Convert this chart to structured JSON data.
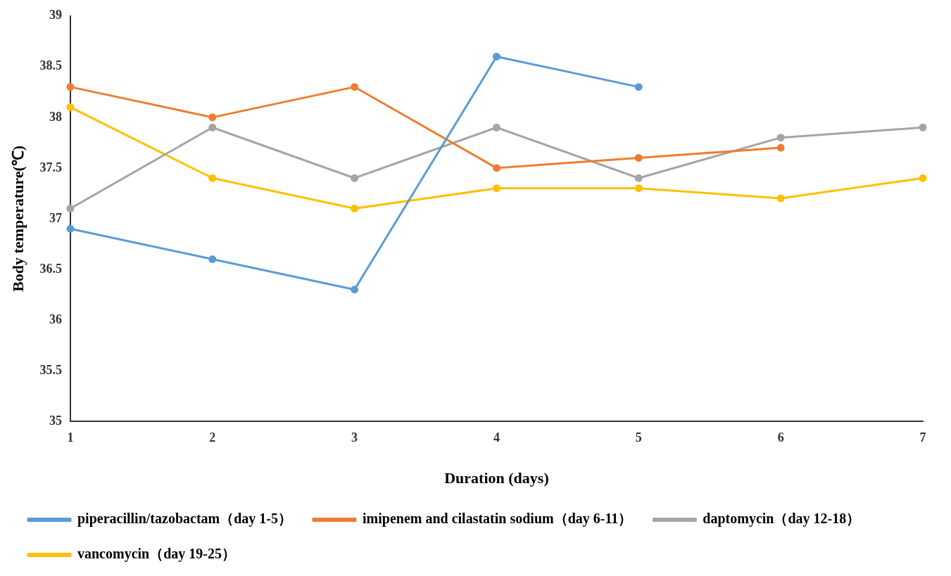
{
  "chart_data": {
    "type": "line",
    "xlabel": "Duration (days)",
    "ylabel": "Body temperature(℃)",
    "categories": [
      "1",
      "2",
      "3",
      "4",
      "5",
      "6",
      "7"
    ],
    "series": [
      {
        "name": "piperacillin/tazobactam（day 1-5）",
        "color": "#5b9bd5",
        "values": [
          36.9,
          36.6,
          36.3,
          38.6,
          38.3,
          null,
          null
        ]
      },
      {
        "name": "imipenem and cilastatin sodium（day 6-11）",
        "color": "#ed7d31",
        "values": [
          38.3,
          38.0,
          38.3,
          37.5,
          37.6,
          37.7,
          null
        ]
      },
      {
        "name": "daptomycin（day 12-18）",
        "color": "#a5a5a5",
        "values": [
          37.1,
          37.9,
          37.4,
          37.9,
          37.4,
          37.8,
          37.9
        ]
      },
      {
        "name": "vancomycin（day 19-25）",
        "color": "#ffc000",
        "values": [
          38.1,
          37.4,
          37.1,
          37.3,
          37.3,
          37.2,
          37.4
        ]
      }
    ],
    "ylim": [
      35,
      39
    ],
    "yticks": [
      35,
      35.5,
      36,
      36.5,
      37,
      37.5,
      38,
      38.5,
      39
    ],
    "grid": false,
    "legend": "bottom",
    "marker": "circle",
    "line_style": "solid"
  }
}
